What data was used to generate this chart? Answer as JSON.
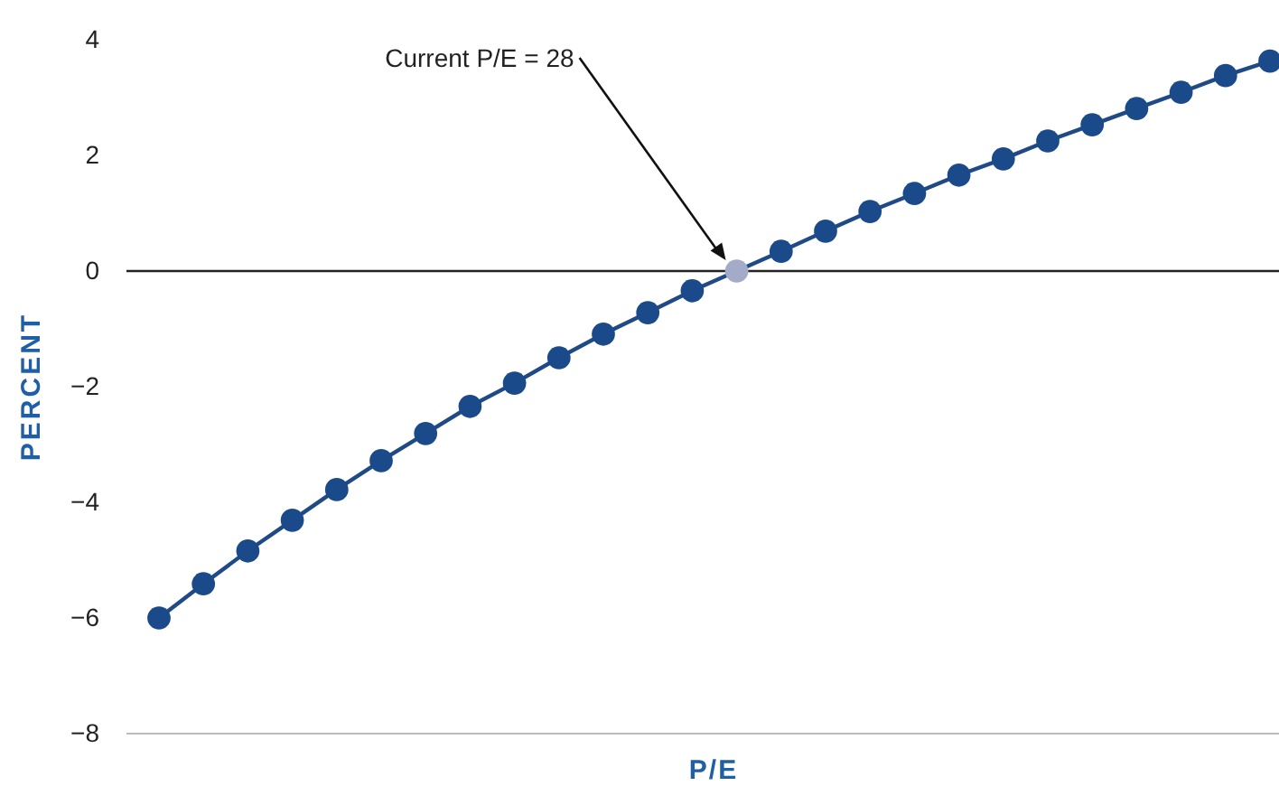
{
  "chart_data": {
    "type": "line",
    "xlabel": "P/E",
    "ylabel": "PERCENT",
    "categories": [
      null,
      null,
      null,
      null,
      null,
      null,
      null,
      null,
      null,
      null,
      null,
      null,
      null,
      null,
      null,
      null,
      null,
      null,
      null,
      null,
      null,
      null,
      null,
      null,
      null,
      null
    ],
    "series": [
      {
        "color": "#1f4a86",
        "marker": "circle",
        "colors": [
          "#1a4a8a",
          "#1a4a8a",
          "#1a4a8a",
          "#1a4a8a",
          "#1a4a8a",
          "#1a4a8a",
          "#1a4a8a",
          "#1a4a8a",
          "#1a4a8a",
          "#1a4a8a",
          "#1a4a8a",
          "#1a4a8a",
          "#1a4a8a",
          "#a3abc9",
          "#1a4a8a",
          "#1a4a8a",
          "#1a4a8a",
          "#1a4a8a",
          "#1a4a8a",
          "#1a4a8a",
          "#1a4a8a",
          "#1a4a8a",
          "#1a4a8a",
          "#1a4a8a",
          "#1a4a8a",
          "#1a4a8a"
        ],
        "values": [
          -6.0,
          -5.41,
          -4.84,
          -4.31,
          -3.78,
          -3.28,
          -2.81,
          -2.34,
          -1.94,
          -1.5,
          -1.09,
          -0.72,
          -0.34,
          0,
          0.34,
          0.69,
          1.03,
          1.34,
          1.66,
          1.94,
          2.25,
          2.53,
          2.81,
          3.09,
          3.38,
          3.63
        ]
      }
    ],
    "ylim": [
      -8,
      4
    ],
    "yticks": [
      {
        "value": -8,
        "label": "−8"
      },
      {
        "value": -6,
        "label": "−6"
      },
      {
        "value": -4,
        "label": "−4"
      },
      {
        "value": -2,
        "label": "−2"
      },
      0,
      2,
      4
    ],
    "ref_lines": [
      {
        "axis": "y",
        "value": 0,
        "color": "#222222"
      }
    ],
    "annotations": [
      "Current P/E = 28"
    ],
    "grid": false
  }
}
